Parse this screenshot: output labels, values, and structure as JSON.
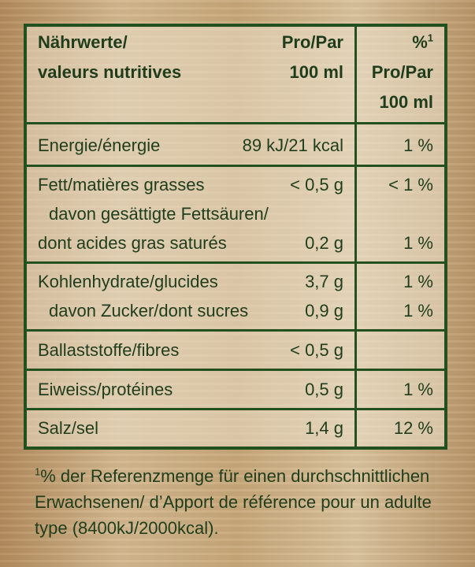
{
  "header": {
    "nutrient_line1": "Nährwerte/",
    "nutrient_line2": "valeurs nutritives",
    "per_line1": "Pro/Par",
    "per_line2": "100 ml",
    "pct_symbol": "%",
    "pct_sup": "1",
    "pct_line2": "Pro/Par",
    "pct_line3": "100 ml"
  },
  "rows": {
    "energy": {
      "label": "Energie/énergie",
      "value": "89 kJ/21 kcal",
      "pct": "1 %"
    },
    "fat": {
      "label": "Fett/matières grasses",
      "value": "< 0,5 g",
      "pct": "< 1 %"
    },
    "sat_label1": "davon gesättigte Fettsäuren/",
    "sat": {
      "label": "dont acides gras saturés",
      "value": "0,2 g",
      "pct": "1 %"
    },
    "carbs": {
      "label": "Kohlenhydrate/glucides",
      "value": "3,7 g",
      "pct": "1 %"
    },
    "sugar": {
      "label": "davon Zucker/dont sucres",
      "value": "0,9 g",
      "pct": "1 %"
    },
    "fibre": {
      "label": "Ballaststoffe/fibres",
      "value": "< 0,5 g",
      "pct": ""
    },
    "protein": {
      "label": "Eiweiss/protéines",
      "value": "0,5 g",
      "pct": "1 %"
    },
    "salt": {
      "label": "Salz/sel",
      "value": "1,4 g",
      "pct": "12 %"
    }
  },
  "footnote": {
    "sup": "1",
    "line1": "% der Referenzmenge für einen durchschnittlichen",
    "line2": "Erwachsenen/ d’Apport de référence pour un adulte",
    "line3": "type (8400kJ/2000kcal)."
  }
}
